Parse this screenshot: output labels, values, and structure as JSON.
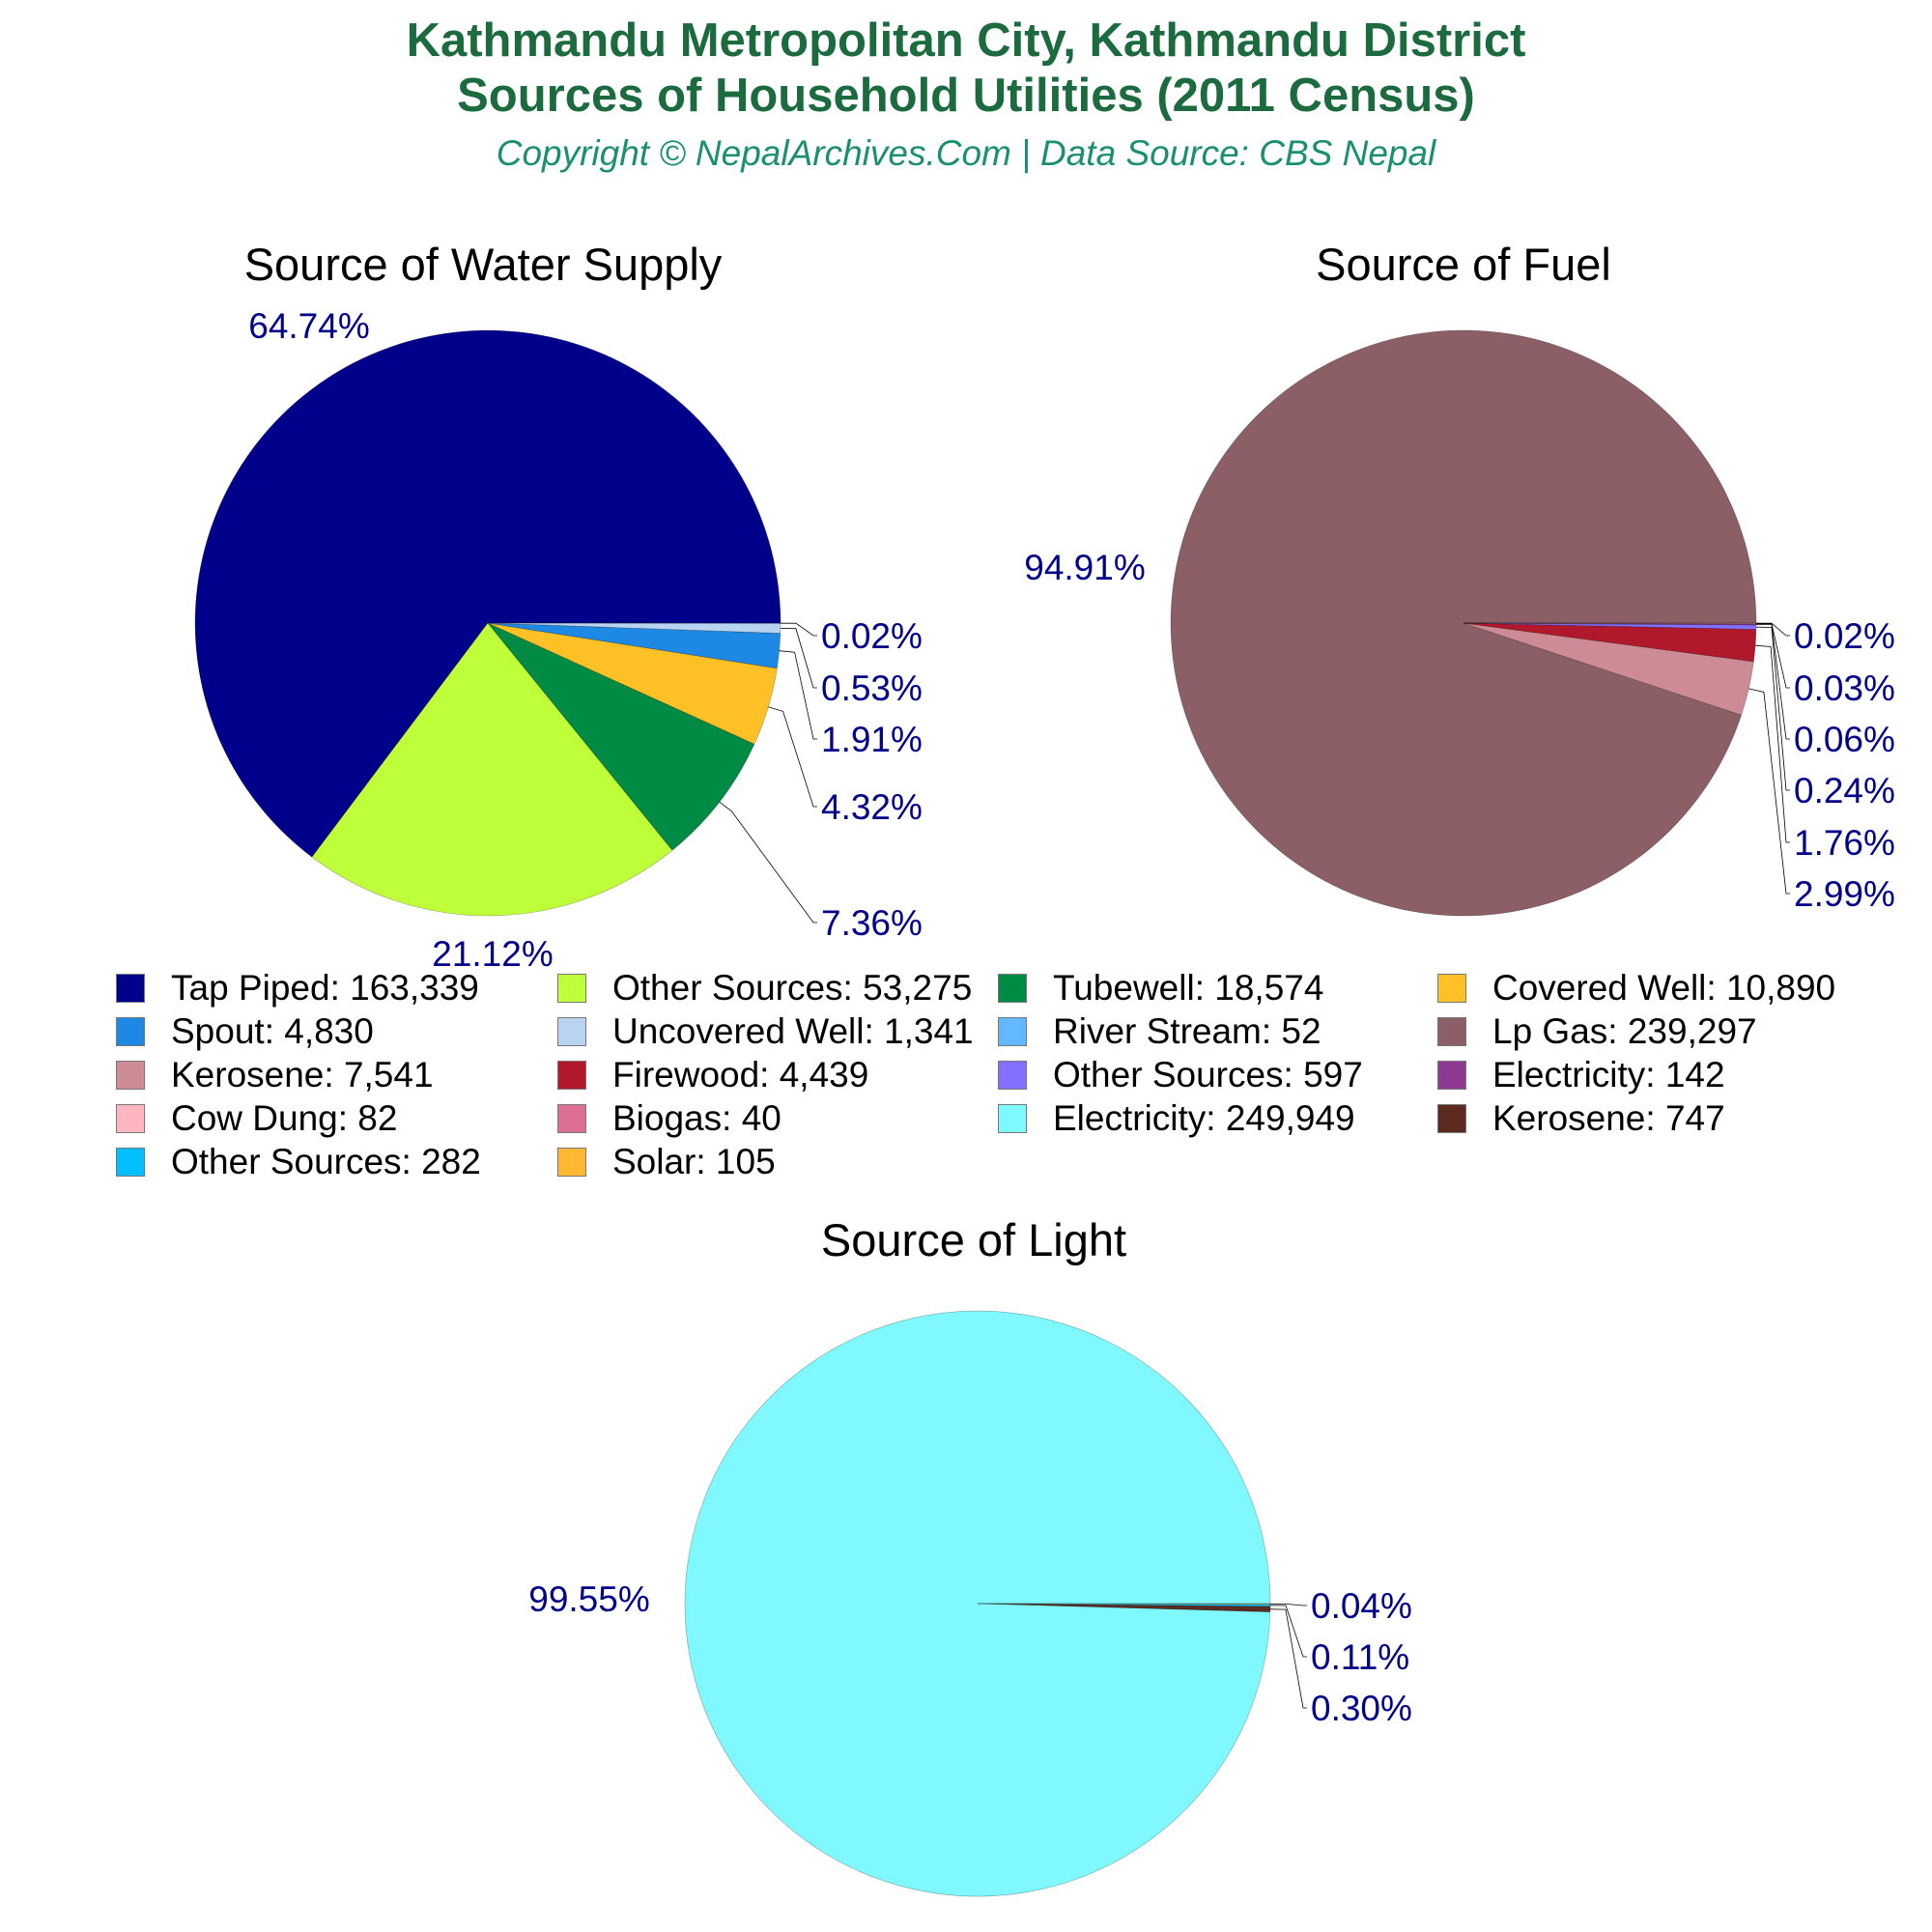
{
  "title_line1": "Kathmandu Metropolitan City, Kathmandu District",
  "title_line2": "Sources of Household Utilities (2011 Census)",
  "subtitle": "Copyright © NepalArchives.Com | Data Source: CBS Nepal",
  "colors": {
    "title": "#1b6b3e",
    "subtitle": "#1a9070",
    "percent_label": "#00008b"
  },
  "chart_data": [
    {
      "type": "pie",
      "title": "Source of Water Supply",
      "slices": [
        {
          "label": "Tap Piped",
          "value": 163339,
          "percent": "64.74%",
          "color": "#00008b"
        },
        {
          "label": "Other Sources",
          "value": 53275,
          "percent": "21.12%",
          "color": "#bfff3a"
        },
        {
          "label": "Tubewell",
          "value": 18574,
          "percent": "7.36%",
          "color": "#008b45"
        },
        {
          "label": "Covered Well",
          "value": 10890,
          "percent": "4.32%",
          "color": "#ffc125"
        },
        {
          "label": "Spout",
          "value": 4830,
          "percent": "1.91%",
          "color": "#1e88e5"
        },
        {
          "label": "Uncovered Well",
          "value": 1341,
          "percent": "0.53%",
          "color": "#b8d4f0"
        },
        {
          "label": "River Stream",
          "value": 52,
          "percent": "0.02%",
          "color": "#63b8ff"
        }
      ]
    },
    {
      "type": "pie",
      "title": "Source of Fuel",
      "slices": [
        {
          "label": "Lp Gas",
          "value": 239297,
          "percent": "94.91%",
          "color": "#8b5f65"
        },
        {
          "label": "Kerosene",
          "value": 7541,
          "percent": "2.99%",
          "color": "#cd8c95"
        },
        {
          "label": "Firewood",
          "value": 4439,
          "percent": "1.76%",
          "color": "#b2182b"
        },
        {
          "label": "Other Sources",
          "value": 597,
          "percent": "0.24%",
          "color": "#8470ff"
        },
        {
          "label": "Electricity",
          "value": 142,
          "percent": "0.06%",
          "color": "#8e3a95"
        },
        {
          "label": "Cow Dung",
          "value": 82,
          "percent": "0.03%",
          "color": "#ffb6c1"
        },
        {
          "label": "Biogas",
          "value": 40,
          "percent": "0.02%",
          "color": "#db7093"
        }
      ]
    },
    {
      "type": "pie",
      "title": "Source of Light",
      "slices": [
        {
          "label": "Electricity",
          "value": 249949,
          "percent": "99.55%",
          "color": "#7ff9ff"
        },
        {
          "label": "Kerosene",
          "value": 747,
          "percent": "0.30%",
          "color": "#5c2a1e"
        },
        {
          "label": "Other Sources",
          "value": 282,
          "percent": "0.11%",
          "color": "#00bfff"
        },
        {
          "label": "Solar",
          "value": 105,
          "percent": "0.04%",
          "color": "#ffb833"
        }
      ]
    }
  ],
  "legend": [
    {
      "label": "Tap Piped: 163,339",
      "color": "#00008b"
    },
    {
      "label": "Other Sources: 53,275",
      "color": "#bfff3a"
    },
    {
      "label": "Tubewell: 18,574",
      "color": "#008b45"
    },
    {
      "label": "Covered Well: 10,890",
      "color": "#ffc125"
    },
    {
      "label": "Spout: 4,830",
      "color": "#1e88e5"
    },
    {
      "label": "Uncovered Well: 1,341",
      "color": "#b8d4f0"
    },
    {
      "label": "River Stream: 52",
      "color": "#63b8ff"
    },
    {
      "label": "Lp Gas: 239,297",
      "color": "#8b5f65"
    },
    {
      "label": "Kerosene: 7,541",
      "color": "#cd8c95"
    },
    {
      "label": "Firewood: 4,439",
      "color": "#b2182b"
    },
    {
      "label": "Other Sources: 597",
      "color": "#8470ff"
    },
    {
      "label": "Electricity: 142",
      "color": "#8e3a95"
    },
    {
      "label": "Cow Dung: 82",
      "color": "#ffb6c1"
    },
    {
      "label": "Biogas: 40",
      "color": "#db7093"
    },
    {
      "label": "Electricity: 249,949",
      "color": "#7ff9ff"
    },
    {
      "label": "Kerosene: 747",
      "color": "#5c2a1e"
    },
    {
      "label": "Other Sources: 282",
      "color": "#00bfff"
    },
    {
      "label": "Solar: 105",
      "color": "#ffb833"
    }
  ]
}
